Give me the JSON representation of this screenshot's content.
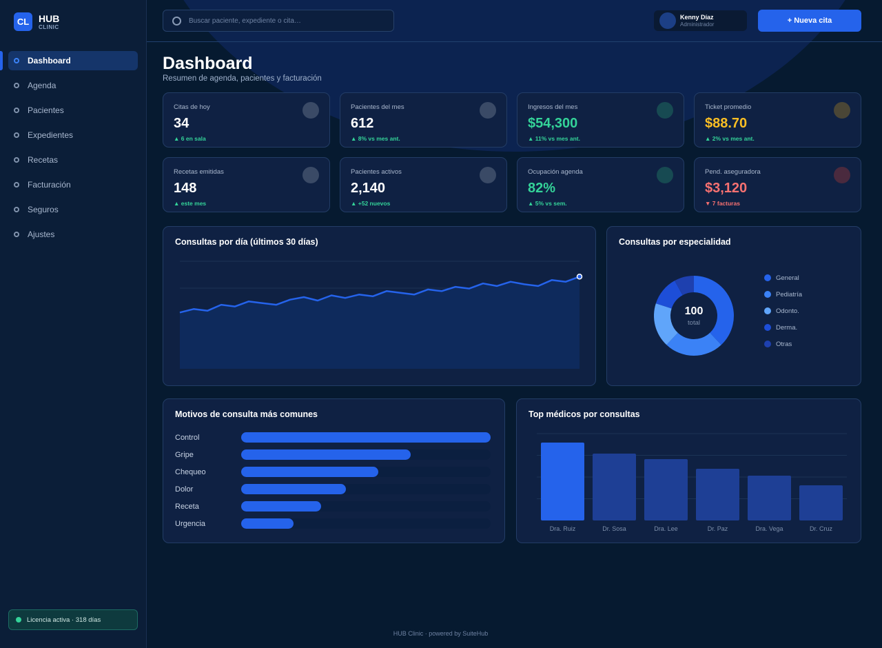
{
  "brand": {
    "logo": "CL",
    "name": "HUB",
    "sub": "CLINIC"
  },
  "sidebar": {
    "items": [
      {
        "label": "Dashboard",
        "active": true
      },
      {
        "label": "Agenda"
      },
      {
        "label": "Pacientes"
      },
      {
        "label": "Expedientes"
      },
      {
        "label": "Recetas"
      },
      {
        "label": "Facturación"
      },
      {
        "label": "Seguros"
      },
      {
        "label": "Ajustes"
      }
    ],
    "license": "Licencia activa · 318 días"
  },
  "topbar": {
    "search_placeholder": "Buscar paciente, expediente o cita…",
    "user_name": "Kenny Díaz",
    "user_role": "Administrador",
    "new_button": "+ Nueva cita"
  },
  "header": {
    "title": "Dashboard",
    "subtitle": "Resumen de agenda, pacientes y facturación"
  },
  "kpis": [
    {
      "label": "Citas de hoy",
      "value": "34",
      "delta": "▲ 6 en sala",
      "value_color": "#ffffff",
      "delta_color": "#34d399",
      "icon_color": "#3a4a66"
    },
    {
      "label": "Pacientes del mes",
      "value": "612",
      "delta": "▲ 8% vs mes ant.",
      "value_color": "#ffffff",
      "delta_color": "#34d399",
      "icon_color": "#3a4a66"
    },
    {
      "label": "Ingresos del mes",
      "value": "$54,300",
      "delta": "▲ 11% vs mes ant.",
      "value_color": "#34d399",
      "delta_color": "#34d399",
      "icon_color": "#174a52"
    },
    {
      "label": "Ticket promedio",
      "value": "$88.70",
      "delta": "▲ 2% vs mes ant.",
      "value_color": "#fbbf24",
      "delta_color": "#34d399",
      "icon_color": "#4a4636"
    },
    {
      "label": "Recetas emitidas",
      "value": "148",
      "delta": "▲ este mes",
      "value_color": "#ffffff",
      "delta_color": "#34d399",
      "icon_color": "#3a4a66"
    },
    {
      "label": "Pacientes activos",
      "value": "2,140",
      "delta": "▲ +52 nuevos",
      "value_color": "#ffffff",
      "delta_color": "#34d399",
      "icon_color": "#3a4a66"
    },
    {
      "label": "Ocupación agenda",
      "value": "82%",
      "delta": "▲ 5% vs sem.",
      "value_color": "#34d399",
      "delta_color": "#34d399",
      "icon_color": "#174a52"
    },
    {
      "label": "Pend. aseguradora",
      "value": "$3,120",
      "delta": "▼ 7 facturas",
      "value_color": "#f87171",
      "delta_color": "#f87171",
      "icon_color": "#4a2a3e"
    }
  ],
  "charts": {
    "line_title": "Consultas por día (últimos 30 días)",
    "donut_title": "Consultas por especialidad",
    "donut_center_value": "100",
    "donut_center_label": "total",
    "reasons_title": "Motivos de consulta más comunes",
    "doctors_title": "Top médicos por consultas"
  },
  "chart_data": [
    {
      "type": "line",
      "title": "Consultas por día (últimos 30 días)",
      "x": [
        1,
        2,
        3,
        4,
        5,
        6,
        7,
        8,
        9,
        10,
        11,
        12,
        13,
        14,
        15,
        16,
        17,
        18,
        19,
        20,
        21,
        22,
        23,
        24,
        25,
        26,
        27,
        28,
        29,
        30
      ],
      "values": [
        66,
        70,
        68,
        75,
        73,
        79,
        77,
        75,
        81,
        84,
        80,
        86,
        83,
        87,
        85,
        91,
        89,
        87,
        93,
        91,
        96,
        94,
        100,
        97,
        102,
        99,
        97,
        104,
        102,
        108
      ],
      "ylim": [
        0,
        126
      ]
    },
    {
      "type": "pie",
      "title": "Consultas por especialidad",
      "categories": [
        "General",
        "Pediatría",
        "Odonto.",
        "Derma.",
        "Otras"
      ],
      "values": [
        38,
        24,
        18,
        12,
        8
      ],
      "colors": [
        "#2563eb",
        "#3b82f6",
        "#60a5fa",
        "#1d4ed8",
        "#1e40af"
      ]
    },
    {
      "type": "bar",
      "orientation": "horizontal",
      "title": "Motivos de consulta más comunes",
      "categories": [
        "Control",
        "Gripe",
        "Chequeo",
        "Dolor",
        "Receta",
        "Urgencia"
      ],
      "values": [
        100,
        68,
        55,
        42,
        32,
        21
      ],
      "xlim": [
        0,
        100
      ]
    },
    {
      "type": "bar",
      "title": "Top médicos por consultas",
      "categories": [
        "Dra. Ruiz",
        "Dr. Sosa",
        "Dra. Lee",
        "Dr. Paz",
        "Dra. Vega",
        "Dr. Cruz"
      ],
      "values": [
        113,
        97,
        89,
        75,
        65,
        51
      ],
      "ylim": [
        0,
        126
      ]
    }
  ],
  "footer": "HUB Clinic · powered by SuiteHub"
}
